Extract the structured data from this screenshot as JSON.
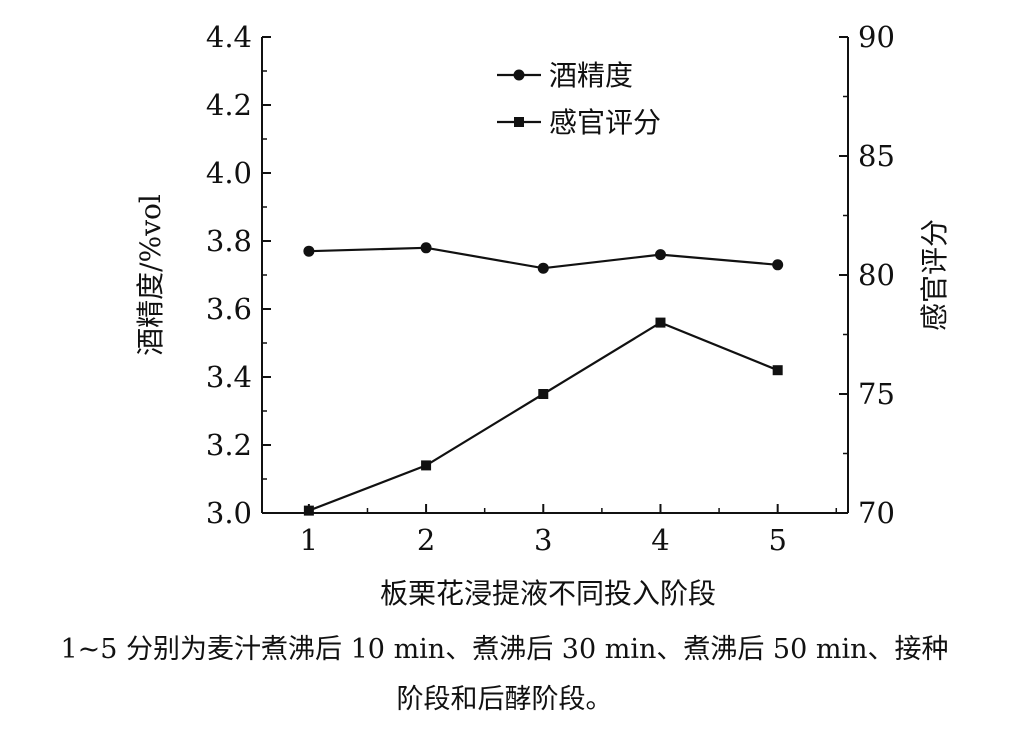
{
  "chart_data": {
    "type": "line",
    "x": [
      1,
      2,
      3,
      4,
      5
    ],
    "xlabel": "板栗花浸提液不同投入阶段",
    "ylabel_left": "酒精度/%vol",
    "ylabel_right": "感官评分",
    "ylim_left": [
      3.0,
      4.4
    ],
    "ylim_right": [
      70,
      90
    ],
    "x_ticks": [
      "1",
      "2",
      "3",
      "4",
      "5"
    ],
    "y_left_ticks": [
      "3.0",
      "3.2",
      "3.4",
      "3.6",
      "3.8",
      "4.0",
      "4.2",
      "4.4"
    ],
    "y_right_ticks": [
      "70",
      "75",
      "80",
      "85",
      "90"
    ],
    "legend_position": "top-center",
    "series": [
      {
        "name": "酒精度",
        "axis": "left",
        "marker": "circle",
        "values": [
          3.77,
          3.78,
          3.72,
          3.76,
          3.73
        ]
      },
      {
        "name": "感官评分",
        "axis": "right",
        "marker": "square",
        "values": [
          70.1,
          72.0,
          75.0,
          78.0,
          76.0
        ]
      }
    ]
  },
  "caption": {
    "line1": "1~5 分别为麦汁煮沸后 10 min、煮沸后 30 min、煮沸后 50 min、接种",
    "line2": "阶段和后酵阶段。"
  }
}
